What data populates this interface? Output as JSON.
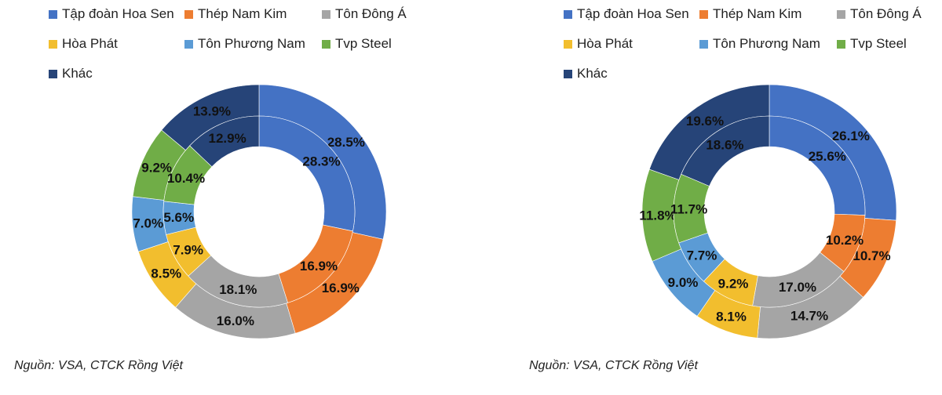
{
  "legend": [
    {
      "label": "Tập đoàn Hoa Sen",
      "color": "#4472C4"
    },
    {
      "label": "Thép Nam Kim",
      "color": "#ED7D31"
    },
    {
      "label": "Tôn Đông Á",
      "color": "#A5A5A5"
    },
    {
      "label": "Hòa Phát",
      "color": "#F2BE2E"
    },
    {
      "label": "Tôn Phương Nam",
      "color": "#5B9BD5"
    },
    {
      "label": "Tvp Steel",
      "color": "#70AD47"
    },
    {
      "label": "Khác",
      "color": "#264478"
    }
  ],
  "source": "Nguồn: VSA, CTCK Rồng Việt",
  "chart_data": [
    {
      "type": "pie",
      "subtype": "nested-donut",
      "categories": [
        "Tập đoàn Hoa Sen",
        "Thép Nam Kim",
        "Tôn Đông Á",
        "Hòa Phát",
        "Tôn Phương Nam",
        "Tvp Steel",
        "Khác"
      ],
      "series": [
        {
          "name": "outer",
          "values": [
            28.5,
            16.9,
            16.0,
            8.5,
            7.0,
            9.2,
            13.9
          ]
        },
        {
          "name": "inner",
          "values": [
            28.3,
            16.9,
            18.1,
            7.9,
            5.6,
            10.4,
            12.9
          ]
        }
      ],
      "legend_position": "top"
    },
    {
      "type": "pie",
      "subtype": "nested-donut",
      "categories": [
        "Tập đoàn Hoa Sen",
        "Thép Nam Kim",
        "Tôn Đông Á",
        "Hòa Phát",
        "Tôn Phương Nam",
        "Tvp Steel",
        "Khác"
      ],
      "series": [
        {
          "name": "outer",
          "values": [
            26.1,
            10.7,
            14.7,
            8.1,
            9.0,
            11.8,
            19.6
          ]
        },
        {
          "name": "inner",
          "values": [
            25.6,
            10.2,
            17.0,
            9.2,
            7.7,
            11.7,
            18.6
          ]
        }
      ],
      "legend_position": "top"
    }
  ]
}
